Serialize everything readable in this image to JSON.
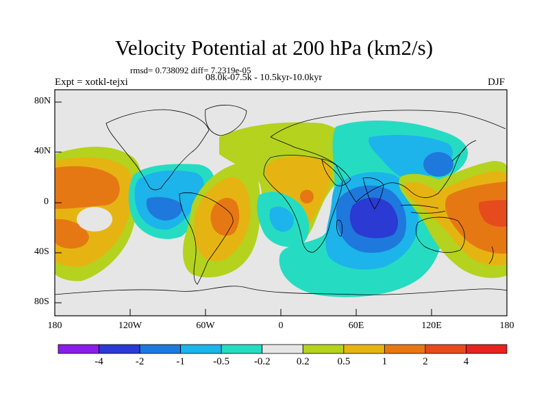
{
  "plot": {
    "title": "Velocity Potential at 200 hPa (km2/s)",
    "stats": "rmsd= 0.738092 diff= 7.2319e-05",
    "period": "08.0k-07.5k - 10.5kyr-10.0kyr",
    "experiment": "Expt = xotkl-tejxi",
    "season": "DJF"
  },
  "axes": {
    "lat_labels": [
      "80N",
      "40N",
      "0",
      "40S",
      "80S"
    ],
    "lon_labels": [
      "180",
      "120W",
      "60W",
      "0",
      "60E",
      "120E",
      "180"
    ]
  },
  "colorbar": {
    "levels": [
      "-4",
      "-2",
      "-1",
      "-0.5",
      "-0.2",
      "0.2",
      "0.5",
      "1",
      "2",
      "4"
    ],
    "colors": [
      "#8a1ee6",
      "#2a3ad2",
      "#1f78dc",
      "#1cb4ea",
      "#25dcc2",
      "#e6e6e6",
      "#b4d21e",
      "#e6b412",
      "#e67814",
      "#e64b1e",
      "#e6231e"
    ]
  },
  "chart_data": {
    "type": "map",
    "field": "200 hPa velocity potential difference",
    "units": "km2/s",
    "lon_range": [
      -180,
      180
    ],
    "lat_range": [
      -90,
      90
    ],
    "anomaly_centers": [
      {
        "name": "central Pacific maximum",
        "lon": -160,
        "lat": 5,
        "level": "2"
      },
      {
        "name": "east Pacific secondary minimum",
        "lon": -150,
        "lat": -15,
        "level": "0.2"
      },
      {
        "name": "Americas minimum",
        "lon": -95,
        "lat": 0,
        "level": "-2"
      },
      {
        "name": "South Atlantic maximum",
        "lon": -40,
        "lat": -5,
        "level": "2"
      },
      {
        "name": "Africa maximum",
        "lon": 20,
        "lat": 5,
        "level": "2"
      },
      {
        "name": "southeast Atlantic minimum",
        "lon": 0,
        "lat": -10,
        "level": "-1"
      },
      {
        "name": "Indian Ocean minimum",
        "lon": 70,
        "lat": -10,
        "level": "-2"
      },
      {
        "name": "East Asia minimum",
        "lon": 125,
        "lat": 30,
        "level": "-1"
      },
      {
        "name": "Maritime Continent maximum",
        "lon": 115,
        "lat": 0,
        "level": "1"
      },
      {
        "name": "west Pacific maximum",
        "lon": 170,
        "lat": -5,
        "level": "2"
      }
    ]
  }
}
